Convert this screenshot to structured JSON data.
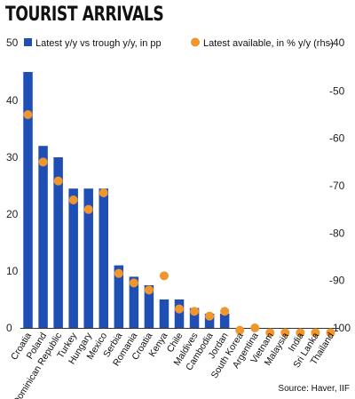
{
  "chart_data": {
    "type": "bar",
    "title": "TOURIST ARRIVALS",
    "source": "Source: Haver, IIF",
    "categories": [
      "Croatia",
      "Poland",
      "Dominican Republic",
      "Turkey",
      "Hungary",
      "Mexico",
      "Serbia",
      "Romania",
      "Croatia",
      "Kenya",
      "Chile",
      "Maldives",
      "Cambodia",
      "Jordan",
      "South Korea",
      "Argentina",
      "Vietnam",
      "Malaysia",
      "India",
      "Sri Lanka",
      "Thailand"
    ],
    "series": [
      {
        "name": "Latest y/y vs trough y/y, in pp",
        "type": "bar",
        "axis": "left",
        "color": "#1f4fb5",
        "values": [
          45,
          32,
          30,
          24.5,
          24.5,
          24.5,
          11,
          9,
          7.5,
          5,
          5,
          3.5,
          2.5,
          2.5,
          null,
          null,
          null,
          null,
          null,
          null,
          null
        ]
      },
      {
        "name": "Latest available, in % y/y (rhs)",
        "type": "scatter",
        "axis": "right",
        "color": "#f0962d",
        "values": [
          -55,
          -65,
          -69,
          -73,
          -75,
          -71.5,
          -88.5,
          -90.5,
          -92,
          -89,
          -96,
          -96.5,
          -97.5,
          -96.5,
          -100.5,
          -100,
          -101,
          -101,
          -101,
          -101,
          -101
        ]
      }
    ],
    "ylim_left": [
      0,
      50
    ],
    "yticks_left": [
      "0",
      "10",
      "20",
      "30",
      "40",
      "50"
    ],
    "ylim_right": [
      -100,
      -40
    ],
    "yticks_right": [
      "-40",
      "-50",
      "-60",
      "-70",
      "-80",
      "-90",
      "-100"
    ],
    "legend_position": "top",
    "grid": false
  }
}
